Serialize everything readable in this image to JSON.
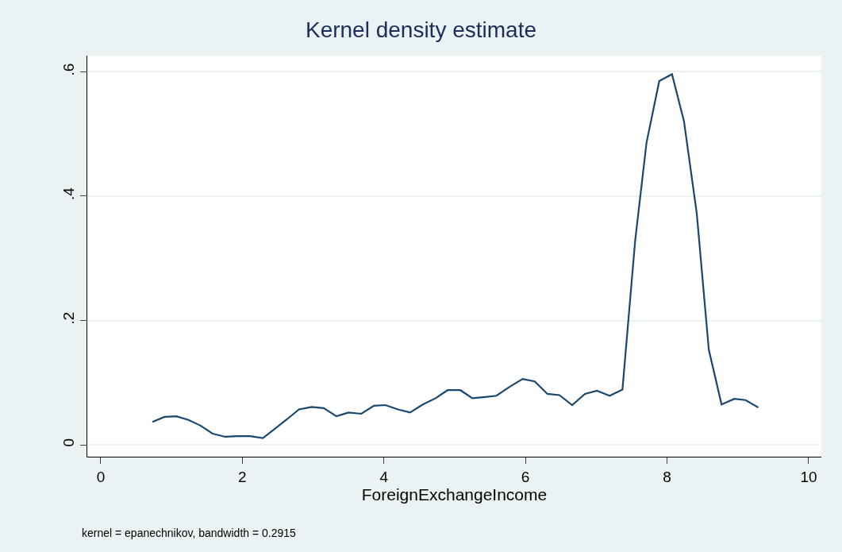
{
  "chart_data": {
    "type": "line",
    "title": "Kernel density estimate",
    "xlabel": "ForeignExchangeIncome",
    "annotations": [
      "kernel = epanechnikov, bandwidth = 0.2915"
    ],
    "x": [
      0.73,
      0.9,
      1.07,
      1.24,
      1.41,
      1.58,
      1.76,
      1.93,
      2.11,
      2.29,
      2.46,
      2.64,
      2.8,
      2.98,
      3.15,
      3.33,
      3.5,
      3.68,
      3.86,
      4.02,
      4.2,
      4.37,
      4.55,
      4.73,
      4.9,
      5.08,
      5.25,
      5.43,
      5.59,
      5.77,
      5.96,
      6.13,
      6.31,
      6.48,
      6.66,
      6.84,
      7.01,
      7.19,
      7.37,
      7.55,
      7.71,
      7.89,
      8.07,
      8.24,
      8.42,
      8.59,
      8.77,
      8.95,
      9.11,
      9.29
    ],
    "series": [
      {
        "color": "#1a476f",
        "values": [
          0.037,
          0.045,
          0.046,
          0.04,
          0.031,
          0.018,
          0.013,
          0.014,
          0.014,
          0.011,
          0.026,
          0.042,
          0.057,
          0.061,
          0.059,
          0.046,
          0.052,
          0.05,
          0.063,
          0.064,
          0.057,
          0.052,
          0.065,
          0.075,
          0.088,
          0.088,
          0.075,
          0.077,
          0.079,
          0.093,
          0.106,
          0.102,
          0.082,
          0.08,
          0.064,
          0.082,
          0.087,
          0.079,
          0.089,
          0.329,
          0.486,
          0.585,
          0.596,
          0.52,
          0.372,
          0.153,
          0.065,
          0.074,
          0.072,
          0.06
        ]
      }
    ],
    "xlim": [
      -0.19,
      10.18
    ],
    "ylim": [
      -0.019,
      0.626
    ],
    "xticks": [
      0,
      2,
      4,
      6,
      8,
      10
    ],
    "yticks": [
      {
        "value": 0,
        "label": "0"
      },
      {
        "value": 0.2,
        "label": ".2"
      },
      {
        "value": 0.4,
        "label": ".4"
      },
      {
        "value": 0.6,
        "label": ".6"
      }
    ],
    "grid": "y",
    "marker": "none",
    "line_style": "solid"
  }
}
